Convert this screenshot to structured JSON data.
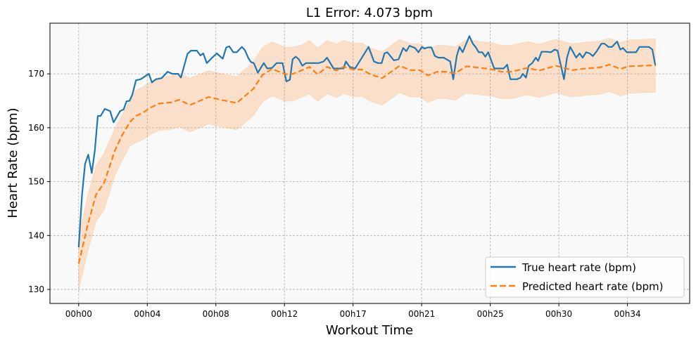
{
  "chart_data": {
    "type": "line",
    "title": "L1 Error: 4.073 bpm",
    "xlabel": "Workout Time",
    "ylabel": "Heart Rate (bpm)",
    "x_unit": "minutes",
    "xlim": [
      -1.8,
      38.3
    ],
    "ylim": [
      127.4,
      179.4
    ],
    "grid": true,
    "legend_position": "lower-right",
    "x_ticks": [
      {
        "value": 0,
        "label": "00h00"
      },
      {
        "value": 4.3,
        "label": "00h04"
      },
      {
        "value": 8.6,
        "label": "00h08"
      },
      {
        "value": 12.9,
        "label": "00h12"
      },
      {
        "value": 17.2,
        "label": "00h17"
      },
      {
        "value": 21.5,
        "label": "00h21"
      },
      {
        "value": 25.8,
        "label": "00h25"
      },
      {
        "value": 30.1,
        "label": "00h30"
      },
      {
        "value": 34.4,
        "label": "00h34"
      }
    ],
    "y_ticks": [
      {
        "value": 130,
        "label": "130"
      },
      {
        "value": 140,
        "label": "140"
      },
      {
        "value": 150,
        "label": "150"
      },
      {
        "value": 160,
        "label": "160"
      },
      {
        "value": 170,
        "label": "170"
      }
    ],
    "series": [
      {
        "name": "True heart rate (bpm)",
        "color": "#1f77b4",
        "style": "solid",
        "x": [
          0,
          0.21,
          0.4,
          0.6,
          0.82,
          1.01,
          1.2,
          1.38,
          1.63,
          1.97,
          2.19,
          2.6,
          2.82,
          3.0,
          3.19,
          3.37,
          3.59,
          3.88,
          4.4,
          4.59,
          4.84,
          5.2,
          5.57,
          5.87,
          6.23,
          6.41,
          6.82,
          7.04,
          7.41,
          7.63,
          7.81,
          8.03,
          8.37,
          8.66,
          9.03,
          9.25,
          9.44,
          9.69,
          9.91,
          10.23,
          10.42,
          10.64,
          10.79,
          10.98,
          11.23,
          11.6,
          11.82,
          12.12,
          12.41,
          12.78,
          13.02,
          13.24,
          13.41,
          13.61,
          13.8,
          14.02,
          14.25,
          15.05,
          15.35,
          15.57,
          15.98,
          16.6,
          16.75,
          16.99,
          17.33,
          18.17,
          18.51,
          18.76,
          18.99,
          19.17,
          19.35,
          19.76,
          20.05,
          20.34,
          20.54,
          20.74,
          21.08,
          21.3,
          21.52,
          21.67,
          21.89,
          22.11,
          22.33,
          22.55,
          22.88,
          23.29,
          23.48,
          23.7,
          23.87,
          24.07,
          24.49,
          24.71,
          24.9,
          25.08,
          25.3,
          25.49,
          25.67,
          26.05,
          26.64,
          26.86,
          27.06,
          27.48,
          27.7,
          27.84,
          28.04,
          28.21,
          28.43,
          28.65,
          28.8,
          29.02,
          29.32,
          29.61,
          29.83,
          30.02,
          30.42,
          30.61,
          30.81,
          31.19,
          31.4,
          31.59,
          31.81,
          32.03,
          32.23,
          32.45,
          32.77,
          32.96,
          33.21,
          33.43,
          33.75,
          33.95,
          34.12,
          34.36,
          34.94,
          35.15,
          35.75,
          35.96,
          36.15
        ],
        "y": [
          137.8,
          147.6,
          153.3,
          155.0,
          151.6,
          155.7,
          162.2,
          162.2,
          163.5,
          163.1,
          161.0,
          163.1,
          163.4,
          164.9,
          165.0,
          166.2,
          168.8,
          169.0,
          170.0,
          168.4,
          169.0,
          169.2,
          170.4,
          170.0,
          170.0,
          169.3,
          173.7,
          174.3,
          174.3,
          173.4,
          173.8,
          172.0,
          173.0,
          173.8,
          172.8,
          174.9,
          175.1,
          174.0,
          174.0,
          175.0,
          174.4,
          172.9,
          172.2,
          172.0,
          170.2,
          172.0,
          171.0,
          171.1,
          172.0,
          172.0,
          168.6,
          168.9,
          172.7,
          173.2,
          172.7,
          171.5,
          172.0,
          172.0,
          172.3,
          173.0,
          171.0,
          171.0,
          172.3,
          171.3,
          171.0,
          175.0,
          172.3,
          172.0,
          172.0,
          173.8,
          174.0,
          172.5,
          172.7,
          174.8,
          174.2,
          175.2,
          174.8,
          174.0,
          175.0,
          174.7,
          174.9,
          174.9,
          173.3,
          173.0,
          173.0,
          172.3,
          169.0,
          173.3,
          175.0,
          174.0,
          177.0,
          175.6,
          174.9,
          174.0,
          174.0,
          173.2,
          174.0,
          171.0,
          171.0,
          171.7,
          169.0,
          169.0,
          169.3,
          170.0,
          169.3,
          171.5,
          172.0,
          173.0,
          172.4,
          174.1,
          174.1,
          174.0,
          174.5,
          174.3,
          169.0,
          173.0,
          175.0,
          173.0,
          173.8,
          173.0,
          174.0,
          173.8,
          173.3,
          174.1,
          175.6,
          175.6,
          175.0,
          175.0,
          176.0,
          174.5,
          174.8,
          174.0,
          174.0,
          175.0,
          175.0,
          174.5,
          171.5
        ]
      },
      {
        "name": "Predicted heart rate (bpm)",
        "color": "#ff7f0e",
        "style": "dashed",
        "x": [
          0,
          0.57,
          1.09,
          1.6,
          2.26,
          2.7,
          3.22,
          3.59,
          4.03,
          4.47,
          5.06,
          5.79,
          6.31,
          6.97,
          8.15,
          8.88,
          9.91,
          10.94,
          11.52,
          12.12,
          13.0,
          13.44,
          14.02,
          14.47,
          14.98,
          15.57,
          16.15,
          16.6,
          17.26,
          17.77,
          18.29,
          19.02,
          20.12,
          20.79,
          21.38,
          21.89,
          22.48,
          22.99,
          23.58,
          24.31,
          25.79,
          26.52,
          27.11,
          28.14,
          28.87,
          29.9,
          30.93,
          31.81,
          32.69,
          33.29,
          33.95,
          34.46,
          36.15
        ],
        "y": [
          134.8,
          142.0,
          147.6,
          149.8,
          155.7,
          158.5,
          161.1,
          162.2,
          162.8,
          163.7,
          164.5,
          164.7,
          165.2,
          164.2,
          165.7,
          165.2,
          164.6,
          167.2,
          169.8,
          170.9,
          169.9,
          170.0,
          170.7,
          171.3,
          169.9,
          171.3,
          170.6,
          171.3,
          170.8,
          170.8,
          169.9,
          169.2,
          171.5,
          170.7,
          170.7,
          169.7,
          170.4,
          170.4,
          170.1,
          171.4,
          170.9,
          170.4,
          170.4,
          171.1,
          170.6,
          171.5,
          170.7,
          171.0,
          171.2,
          171.7,
          170.9,
          171.4,
          171.6
        ],
        "band_lower": [
          130.0,
          137.0,
          142.6,
          144.8,
          151.0,
          153.8,
          156.6,
          157.2,
          157.8,
          158.7,
          159.5,
          159.7,
          160.2,
          159.2,
          160.7,
          160.2,
          159.6,
          162.2,
          164.8,
          165.9,
          164.9,
          165.0,
          165.7,
          166.3,
          164.9,
          166.3,
          165.6,
          166.3,
          165.8,
          165.8,
          164.9,
          164.2,
          166.5,
          165.7,
          165.7,
          164.7,
          165.4,
          165.4,
          165.1,
          166.4,
          165.9,
          165.4,
          165.4,
          166.1,
          165.6,
          166.5,
          165.7,
          166.0,
          166.2,
          166.7,
          165.9,
          166.4,
          166.6
        ],
        "band_upper": [
          139.6,
          147.5,
          153.0,
          155.3,
          159.8,
          162.3,
          165.0,
          166.9,
          167.6,
          168.5,
          169.3,
          169.6,
          170.1,
          169.2,
          170.6,
          170.1,
          169.5,
          172.2,
          174.9,
          175.9,
          174.9,
          175.0,
          175.4,
          176.2,
          174.8,
          176.2,
          175.5,
          176.2,
          175.7,
          175.7,
          174.8,
          174.1,
          176.4,
          175.6,
          175.6,
          174.6,
          175.3,
          175.3,
          175.0,
          176.3,
          175.8,
          175.3,
          175.3,
          176.0,
          175.5,
          176.4,
          175.6,
          175.9,
          176.1,
          176.6,
          175.8,
          176.3,
          176.5
        ]
      }
    ],
    "band_color": "#ff7f0e"
  }
}
